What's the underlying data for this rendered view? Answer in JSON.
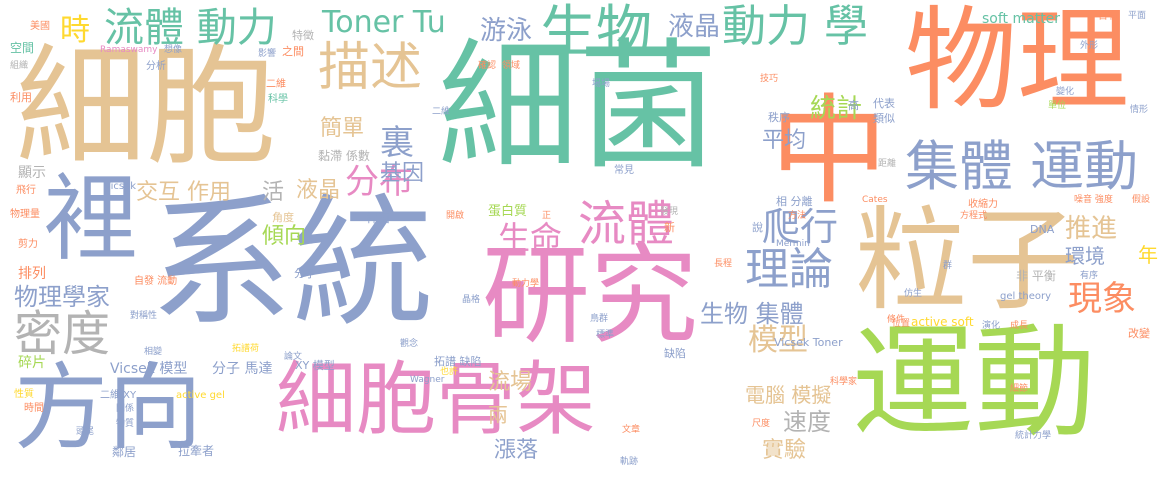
{
  "palette": {
    "green": "#66c2a5",
    "orange": "#fc8d62",
    "blue": "#8da0cb",
    "pink": "#e78ac3",
    "lime": "#a6d854",
    "yellow": "#ffd92f",
    "tan": "#e5c494",
    "gray": "#b3b3b3"
  },
  "words": [
    {
      "id": "w-xitong",
      "text": "系統"
    },
    {
      "id": "w-xijun",
      "text": "細菌"
    },
    {
      "id": "w-xibao-big",
      "text": "細胞"
    },
    {
      "id": "w-yundong-big",
      "text": "運動"
    },
    {
      "id": "w-wuli",
      "text": "物理"
    },
    {
      "id": "w-zhong",
      "text": "中"
    },
    {
      "id": "w-lizi",
      "text": "粒子"
    },
    {
      "id": "w-yanjiu",
      "text": "研究"
    },
    {
      "id": "w-xibaogujia",
      "text": "細胞骨架"
    },
    {
      "id": "w-fangxiang",
      "text": "方向"
    },
    {
      "id": "w-li",
      "text": "裡"
    },
    {
      "id": "w-jiti-yundong",
      "text": "集體 運動"
    },
    {
      "id": "w-shengwu",
      "text": "生物"
    },
    {
      "id": "w-liuti-dongli",
      "text": "流體 動力"
    },
    {
      "id": "w-dongli-xue",
      "text": "動力 學"
    },
    {
      "id": "w-miaoshu",
      "text": "描述"
    },
    {
      "id": "w-tonertu",
      "text": "Toner Tu"
    },
    {
      "id": "w-youyong",
      "text": "游泳"
    },
    {
      "id": "w-yejing-top",
      "text": "液晶"
    },
    {
      "id": "w-shi",
      "text": "時"
    },
    {
      "id": "w-lilun",
      "text": "理論"
    },
    {
      "id": "w-liuti-mid",
      "text": "流體"
    },
    {
      "id": "w-paxing",
      "text": "爬行"
    },
    {
      "id": "w-midu",
      "text": "密度"
    },
    {
      "id": "w-wulixuejia",
      "text": "物理學家"
    },
    {
      "id": "w-fenbu",
      "text": "分布"
    },
    {
      "id": "w-li2",
      "text": "裏"
    },
    {
      "id": "w-jiandan",
      "text": "簡單"
    },
    {
      "id": "w-jiyin",
      "text": "基因"
    },
    {
      "id": "w-tongji",
      "text": "統計"
    },
    {
      "id": "w-pingjun",
      "text": "平均"
    },
    {
      "id": "w-moxing",
      "text": "模型"
    },
    {
      "id": "w-shengming",
      "text": "生命"
    },
    {
      "id": "w-shengwu-jiti",
      "text": "生物 集體"
    },
    {
      "id": "w-xianxiang",
      "text": "現象"
    },
    {
      "id": "w-tuijin",
      "text": "推進"
    },
    {
      "id": "w-huanjing",
      "text": "環境"
    },
    {
      "id": "w-jiaohu",
      "text": "交互 作用"
    },
    {
      "id": "w-huo",
      "text": "活"
    },
    {
      "id": "w-yejing-mid",
      "text": "液晶"
    },
    {
      "id": "w-qingxiang",
      "text": "傾向"
    },
    {
      "id": "w-liuchang",
      "text": "流場"
    },
    {
      "id": "w-liang",
      "text": "兩"
    },
    {
      "id": "w-zhangluo",
      "text": "漲落"
    },
    {
      "id": "w-diannao",
      "text": "電腦 模擬"
    },
    {
      "id": "w-sudu",
      "text": "速度"
    },
    {
      "id": "w-shiyan",
      "text": "實驗"
    },
    {
      "id": "w-vicsek",
      "text": "Vicsek 模型"
    },
    {
      "id": "w-fenzi-mada",
      "text": "分子 馬達"
    },
    {
      "id": "w-suipian",
      "text": "碎片"
    },
    {
      "id": "w-pailie",
      "text": "排列"
    },
    {
      "id": "w-nian",
      "text": "年"
    },
    {
      "id": "w-softmatter",
      "text": "soft matter"
    },
    {
      "id": "w-hanyou",
      "text": "含有"
    },
    {
      "id": "w-pingmian",
      "text": "平面"
    },
    {
      "id": "w-kongjian",
      "text": "空間"
    },
    {
      "id": "w-meiguo",
      "text": "美國"
    },
    {
      "id": "w-ramaswamy",
      "text": "Ramaswamy"
    },
    {
      "id": "w-xiangxiang",
      "text": "想像"
    },
    {
      "id": "w-yingxiang",
      "text": "影響"
    },
    {
      "id": "w-zhijian",
      "text": "之間"
    },
    {
      "id": "w-tezheng",
      "text": "特徵"
    },
    {
      "id": "w-lilong",
      "text": "細胞"
    },
    {
      "id": "w-zuzhi",
      "text": "組織"
    },
    {
      "id": "w-xiang",
      "text": "相"
    },
    {
      "id": "w-fenxi",
      "text": "分析"
    },
    {
      "id": "w-liyong",
      "text": "利用"
    },
    {
      "id": "w-xianshi",
      "text": "顯示"
    },
    {
      "id": "w-feixing",
      "text": "飛行"
    },
    {
      "id": "w-wuliliang",
      "text": "物理量"
    },
    {
      "id": "w-jianli",
      "text": "剪力"
    },
    {
      "id": "w-vicsek-small",
      "text": "Vicsek"
    },
    {
      "id": "w-nianzhi",
      "text": "黏滯 係數"
    },
    {
      "id": "w-kexue",
      "text": "科學"
    },
    {
      "id": "w-erwei",
      "text": "二維"
    },
    {
      "id": "w-zhixu",
      "text": "秩序"
    },
    {
      "id": "w-jiaodu",
      "text": "角度"
    },
    {
      "id": "w-ganjun",
      "text": "桿菌"
    },
    {
      "id": "w-danbaizhi",
      "text": "蛋白質"
    },
    {
      "id": "w-xiangfenli",
      "text": "相 分離"
    },
    {
      "id": "w-changjian",
      "text": "常見"
    },
    {
      "id": "w-shuo",
      "text": "說"
    },
    {
      "id": "w-feipingheng",
      "text": "非 平衡"
    },
    {
      "id": "w-fenzi",
      "text": "分子"
    },
    {
      "id": "w-xymoxing",
      "text": "XY 模型"
    },
    {
      "id": "w-tapu",
      "text": "拓譜 缺陷"
    },
    {
      "id": "w-quexian",
      "text": "缺陷"
    },
    {
      "id": "w-activesoft",
      "text": "active soft"
    },
    {
      "id": "w-vicsektoner",
      "text": "Vicsek Toner"
    },
    {
      "id": "w-dna",
      "text": "DNA"
    },
    {
      "id": "w-geltheory",
      "text": "gel theory"
    },
    {
      "id": "w-youxu",
      "text": "有序"
    },
    {
      "id": "w-activegel",
      "text": "active gel"
    },
    {
      "id": "w-erwei-xy",
      "text": "二維 XY"
    },
    {
      "id": "w-shijian",
      "text": "時間"
    },
    {
      "id": "w-xingzhi",
      "text": "性質"
    },
    {
      "id": "w-linju",
      "text": "鄰居"
    },
    {
      "id": "w-laqianzhe",
      "text": "拉牽者"
    },
    {
      "id": "w-chidu",
      "text": "尺度"
    },
    {
      "id": "w-tongjilixue",
      "text": "統計力學"
    },
    {
      "id": "w-xijie",
      "text": "細節"
    },
    {
      "id": "w-kexuejia",
      "text": "科學家"
    },
    {
      "id": "w-gaibian",
      "text": "改變"
    },
    {
      "id": "w-mermin",
      "text": "Mermin"
    },
    {
      "id": "w-shousuoli",
      "text": "收縮力"
    },
    {
      "id": "w-fangcheng",
      "text": "方程式"
    },
    {
      "id": "w-wagner",
      "text": "Wagner"
    },
    {
      "id": "w-cates",
      "text": "Cates"
    },
    {
      "id": "w-duichen",
      "text": "對稱性"
    },
    {
      "id": "w-xiangbian",
      "text": "相變"
    },
    {
      "id": "w-zifa",
      "text": "自發 流動"
    },
    {
      "id": "w-tapuhe",
      "text": "拓譜荷"
    },
    {
      "id": "w-jishu",
      "text": "技巧"
    },
    {
      "id": "w-daibiao",
      "text": "代表"
    },
    {
      "id": "w-leisi",
      "text": "類似"
    },
    {
      "id": "w-gao",
      "text": "高"
    },
    {
      "id": "w-bianhua",
      "text": "變化"
    },
    {
      "id": "w-danwei",
      "text": "單位"
    },
    {
      "id": "w-juli",
      "text": "距離"
    },
    {
      "id": "w-fangfa",
      "text": "方法"
    },
    {
      "id": "w-zaoyin",
      "text": "噪音 強度"
    },
    {
      "id": "w-jiashe",
      "text": "假設"
    },
    {
      "id": "w-yanhua",
      "text": "演化"
    },
    {
      "id": "w-weizhi",
      "text": "位置"
    },
    {
      "id": "w-tiaojian",
      "text": "條件"
    },
    {
      "id": "w-chengzhang",
      "text": "成長"
    },
    {
      "id": "w-fangshen",
      "text": "仿生"
    },
    {
      "id": "w-qun",
      "text": "群"
    },
    {
      "id": "w-niaoqun",
      "text": "鳥群"
    },
    {
      "id": "w-biaozhun",
      "text": "標準"
    },
    {
      "id": "w-jingge",
      "text": "晶格"
    },
    {
      "id": "w-lunwen",
      "text": "論文"
    },
    {
      "id": "w-guanlian",
      "text": "觀念"
    },
    {
      "id": "w-changcheng",
      "text": "長程"
    },
    {
      "id": "w-xin",
      "text": "新"
    },
    {
      "id": "w-kaiqi",
      "text": "開啟"
    },
    {
      "id": "w-zhengyin",
      "text": "正"
    },
    {
      "id": "w-chengli",
      "text": "成立"
    },
    {
      "id": "w-qushi",
      "text": "趨勢"
    },
    {
      "id": "w-guize",
      "text": "規則"
    },
    {
      "id": "w-zhuangtai",
      "text": "狀態"
    },
    {
      "id": "w-fazhan",
      "text": "發展"
    },
    {
      "id": "w-hezuo",
      "text": "合作"
    },
    {
      "id": "w-zhichu",
      "text": "指出"
    },
    {
      "id": "w-queren",
      "text": "確認"
    },
    {
      "id": "w-lingyu",
      "text": "領域"
    },
    {
      "id": "w-erda",
      "text": "二維"
    },
    {
      "id": "w-changchang",
      "text": "場場"
    },
    {
      "id": "w-chengxian",
      "text": "呈現"
    },
    {
      "id": "w-faxian",
      "text": "發現"
    },
    {
      "id": "w-guanxi",
      "text": "關係"
    },
    {
      "id": "w-qingxing",
      "text": "情形"
    },
    {
      "id": "w-waixing",
      "text": "外形"
    },
    {
      "id": "w-xiaoguo",
      "text": "效果"
    },
    {
      "id": "w-dingli",
      "text": "定理"
    },
    {
      "id": "w-moxingshu",
      "text": "模型"
    },
    {
      "id": "w-guiji",
      "text": "軌跡"
    },
    {
      "id": "w-dongtai",
      "text": "動態"
    },
    {
      "id": "w-jiegou",
      "text": "結構"
    },
    {
      "id": "w-xixiao",
      "text": "細小"
    },
    {
      "id": "w-wuzhi",
      "text": "物質"
    },
    {
      "id": "w-tougu",
      "text": "頭尾"
    },
    {
      "id": "w-ruitong",
      "text": "一致"
    },
    {
      "id": "w-wenzhang",
      "text": "文章"
    },
    {
      "id": "w-yizhi",
      "text": "也許"
    },
    {
      "id": "w-dongli-s",
      "text": "動力學"
    },
    {
      "id": "w-jumian",
      "text": "局面"
    },
    {
      "id": "w-quanju",
      "text": "全局"
    }
  ]
}
